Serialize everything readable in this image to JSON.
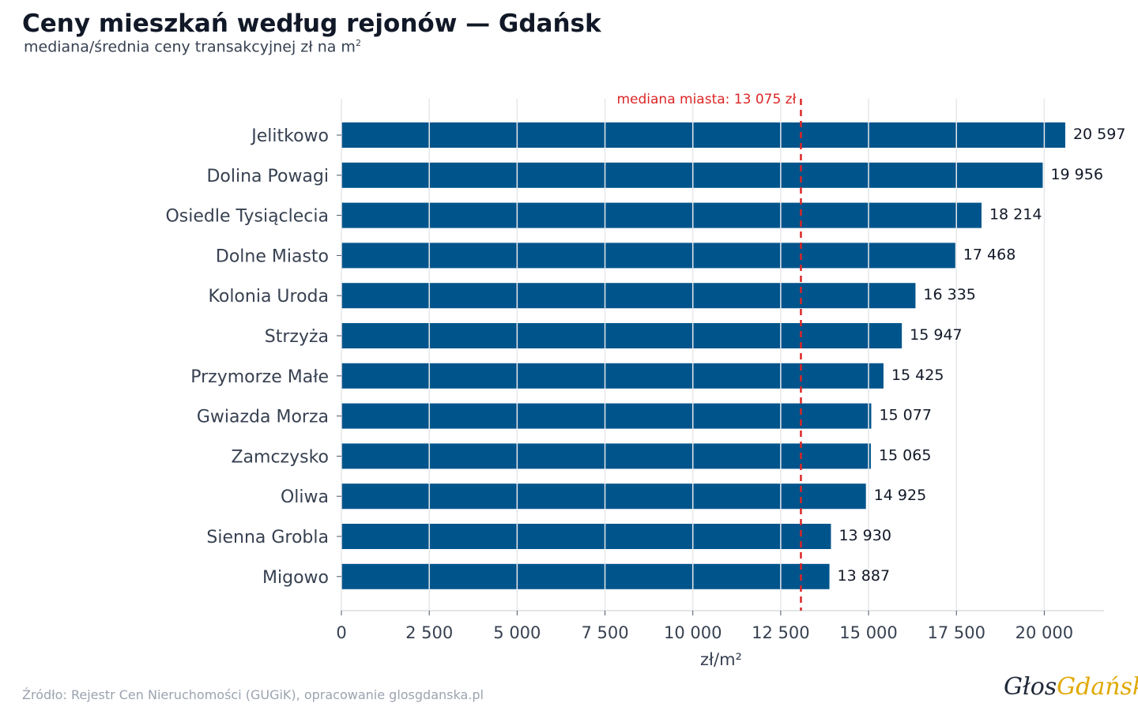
{
  "header": {
    "title": "Ceny mieszkań według rejonów — Gdańsk",
    "subtitle": "mediana/średnia ceny transakcyjnej zł na m",
    "subtitle_sup": "2"
  },
  "footer": {
    "source": "Źródło: Rejestr Cen Nieruchomości (GUGiK), opracowanie glosgdanska.pl",
    "logo_part1": "Głos",
    "logo_part2": "Gdańska"
  },
  "chart_data": {
    "type": "bar",
    "orientation": "horizontal",
    "categories": [
      "Jelitkowo",
      "Dolina Powagi",
      "Osiedle Tysiąclecia",
      "Dolne Miasto",
      "Kolonia Uroda",
      "Strzyża",
      "Przymorze Małe",
      "Gwiazda Morza",
      "Zamczysko",
      "Oliwa",
      "Sienna Grobla",
      "Migowo"
    ],
    "values": [
      20597,
      19956,
      18214,
      17468,
      16335,
      15947,
      15425,
      15077,
      15065,
      14925,
      13930,
      13887
    ],
    "value_labels": [
      "20 597",
      "19 956",
      "18 214",
      "17 468",
      "16 335",
      "15 947",
      "15 425",
      "15 077",
      "15 065",
      "14 925",
      "13 930",
      "13 887"
    ],
    "xlabel": "zł/m²",
    "xlim": [
      0,
      21700
    ],
    "xticks": [
      0,
      2500,
      5000,
      7500,
      10000,
      12500,
      15000,
      17500,
      20000
    ],
    "xtick_labels": [
      "0",
      "2 500",
      "5 000",
      "7 500",
      "10 000",
      "12 500",
      "15 000",
      "17 500",
      "20 000"
    ],
    "grid": true,
    "reference_line": {
      "value": 13075,
      "label": "mediana miasta: 13 075 zł",
      "color": "#dc2626"
    },
    "bar_color": "#00548c"
  }
}
